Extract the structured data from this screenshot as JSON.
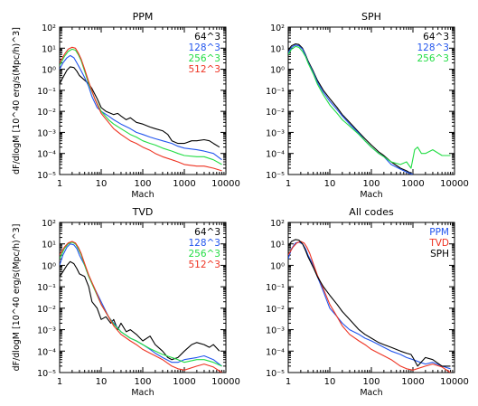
{
  "chart_data": [
    {
      "type": "line",
      "title": "PPM",
      "xlabel": "Mach",
      "ylabel": "dF/dlogM [10^40 erg/s(Mpc/h)^3]",
      "xscale": "log",
      "yscale": "log",
      "xlim": [
        1,
        10000
      ],
      "ylim": [
        1e-05,
        100
      ],
      "xticks": [
        "1",
        "10",
        "100",
        "1000",
        "10000"
      ],
      "legend_position": "top-right",
      "series": [
        {
          "name": "64^3",
          "color": "#000000",
          "x": [
            1,
            1.2,
            1.5,
            1.8,
            2.2,
            2.6,
            3,
            4,
            5,
            6,
            8,
            10,
            13,
            17,
            20,
            25,
            30,
            40,
            50,
            70,
            100,
            150,
            200,
            300,
            400,
            500,
            700,
            1000,
            1500,
            2000,
            3000,
            4000,
            5000,
            7000
          ],
          "y": [
            0.2,
            0.4,
            0.9,
            1.3,
            1.2,
            0.8,
            0.5,
            0.3,
            0.2,
            0.12,
            0.04,
            0.015,
            0.01,
            0.008,
            0.007,
            0.008,
            0.006,
            0.004,
            0.005,
            0.003,
            0.0025,
            0.0018,
            0.0015,
            0.0012,
            0.0008,
            0.0004,
            0.0003,
            0.0003,
            0.0004,
            0.0004,
            0.00045,
            0.0004,
            0.0003,
            0.0002
          ]
        },
        {
          "name": "128^3",
          "color": "#2255ee",
          "x": [
            1,
            1.2,
            1.5,
            1.8,
            2.2,
            2.6,
            3,
            4,
            5,
            6,
            8,
            10,
            15,
            20,
            30,
            50,
            70,
            100,
            150,
            200,
            300,
            500,
            700,
            1000,
            2000,
            3000,
            5000,
            8000
          ],
          "y": [
            1,
            2,
            3.5,
            4.5,
            3.5,
            2,
            1.2,
            0.4,
            0.15,
            0.05,
            0.015,
            0.01,
            0.006,
            0.004,
            0.0025,
            0.0015,
            0.001,
            0.0008,
            0.0006,
            0.0005,
            0.0004,
            0.0003,
            0.00022,
            0.00018,
            0.00015,
            0.00013,
            0.0001,
            5e-05
          ]
        },
        {
          "name": "256^3",
          "color": "#22dd44",
          "x": [
            1,
            1.3,
            1.6,
            2,
            2.4,
            2.8,
            3.3,
            4,
            5,
            7,
            10,
            15,
            20,
            30,
            50,
            70,
            100,
            150,
            200,
            300,
            500,
            700,
            1000,
            2000,
            3000,
            5000,
            8000
          ],
          "y": [
            1.5,
            4,
            7,
            9,
            8,
            5,
            2.5,
            0.8,
            0.2,
            0.04,
            0.01,
            0.004,
            0.0025,
            0.0015,
            0.0008,
            0.0006,
            0.0004,
            0.0003,
            0.00025,
            0.00018,
            0.00013,
            0.0001,
            8e-05,
            7e-05,
            7e-05,
            5e-05,
            3e-05
          ]
        },
        {
          "name": "512^3",
          "color": "#ee3322",
          "x": [
            1,
            1.3,
            1.6,
            2,
            2.4,
            2.8,
            3.3,
            4,
            5,
            7,
            10,
            15,
            20,
            30,
            50,
            70,
            100,
            150,
            200,
            300,
            500,
            700,
            1000,
            2000,
            3000,
            5000,
            8000
          ],
          "y": [
            2,
            5,
            9,
            11,
            10,
            6,
            3,
            1,
            0.25,
            0.04,
            0.008,
            0.003,
            0.0015,
            0.0008,
            0.0004,
            0.0003,
            0.0002,
            0.00014,
            0.0001,
            7e-05,
            5e-05,
            4e-05,
            3e-05,
            2.5e-05,
            2.5e-05,
            2e-05,
            1.5e-05
          ]
        }
      ]
    },
    {
      "type": "line",
      "title": "SPH",
      "xlabel": "Mach",
      "ylabel": "",
      "xscale": "log",
      "yscale": "log",
      "xlim": [
        1,
        10000
      ],
      "ylim": [
        1e-05,
        100
      ],
      "xticks": [
        "1",
        "10",
        "100",
        "1000",
        "10000"
      ],
      "legend_position": "top-right",
      "series": [
        {
          "name": "64^3",
          "color": "#000000",
          "x": [
            1,
            1.2,
            1.5,
            1.8,
            2.2,
            2.6,
            3,
            4,
            5,
            7,
            10,
            15,
            20,
            30,
            50,
            70,
            100,
            150,
            200,
            300,
            500,
            700,
            1000
          ],
          "y": [
            8,
            13,
            16,
            15,
            10,
            5,
            2.5,
            0.8,
            0.3,
            0.1,
            0.04,
            0.015,
            0.007,
            0.003,
            0.001,
            0.0005,
            0.00025,
            0.00012,
            8e-05,
            4e-05,
            2e-05,
            1.5e-05,
            1e-05
          ]
        },
        {
          "name": "128^3",
          "color": "#2255ee",
          "x": [
            1,
            1.2,
            1.5,
            1.8,
            2.2,
            2.6,
            3,
            4,
            5,
            7,
            10,
            15,
            20,
            30,
            50,
            70,
            100,
            150,
            200,
            300,
            500,
            700,
            1000
          ],
          "y": [
            6,
            11,
            14,
            13,
            9,
            4.5,
            2.2,
            0.7,
            0.25,
            0.08,
            0.03,
            0.012,
            0.006,
            0.0025,
            0.0009,
            0.0004,
            0.0002,
            0.0001,
            7e-05,
            3e-05,
            1.8e-05,
            1.3e-05,
            1e-05
          ]
        },
        {
          "name": "256^3",
          "color": "#22dd44",
          "x": [
            1,
            1.2,
            1.5,
            1.8,
            2.2,
            2.6,
            3,
            4,
            5,
            7,
            10,
            15,
            20,
            30,
            50,
            70,
            100,
            150,
            200,
            300,
            500,
            700,
            900,
            1100,
            1300,
            1600,
            2000,
            3000,
            5000,
            8000
          ],
          "y": [
            5,
            9,
            12,
            11,
            7,
            4,
            2,
            0.6,
            0.2,
            0.06,
            0.02,
            0.008,
            0.004,
            0.002,
            0.0008,
            0.0004,
            0.0002,
            0.0001,
            7e-05,
            4e-05,
            3e-05,
            4e-05,
            2e-05,
            0.00015,
            0.0002,
            0.0001,
            0.0001,
            0.00015,
            8e-05,
            8e-05
          ]
        }
      ]
    },
    {
      "type": "line",
      "title": "TVD",
      "xlabel": "Mach",
      "ylabel": "dF/dlogM [10^40 erg/s(Mpc/h)^3]",
      "xscale": "log",
      "yscale": "log",
      "xlim": [
        1,
        10000
      ],
      "ylim": [
        1e-05,
        100
      ],
      "xticks": [
        "1",
        "10",
        "100",
        "1000",
        "10000"
      ],
      "legend_position": "top-right",
      "series": [
        {
          "name": "64^3",
          "color": "#000000",
          "x": [
            1,
            1.2,
            1.5,
            1.8,
            2.2,
            2.6,
            3,
            4,
            5,
            6,
            8,
            10,
            13,
            17,
            20,
            25,
            30,
            40,
            50,
            70,
            100,
            150,
            200,
            300,
            400,
            500,
            700,
            1000,
            1500,
            2000,
            3000,
            4000,
            5000,
            7000
          ],
          "y": [
            0.3,
            0.5,
            1,
            1.5,
            1.2,
            0.7,
            0.4,
            0.3,
            0.1,
            0.02,
            0.01,
            0.003,
            0.004,
            0.002,
            0.003,
            0.001,
            0.002,
            0.0008,
            0.001,
            0.0006,
            0.0003,
            0.0005,
            0.0002,
            0.0001,
            5e-05,
            4e-05,
            5e-05,
            0.0001,
            0.0002,
            0.00025,
            0.0002,
            0.00015,
            0.0002,
            0.0001
          ]
        },
        {
          "name": "128^3",
          "color": "#2255ee",
          "x": [
            1,
            1.2,
            1.5,
            1.8,
            2.2,
            2.6,
            3,
            4,
            5,
            7,
            10,
            15,
            20,
            30,
            50,
            70,
            100,
            150,
            200,
            300,
            500,
            700,
            1000,
            2000,
            3000,
            5000,
            8000
          ],
          "y": [
            1,
            3,
            7,
            10,
            9,
            6,
            3,
            1,
            0.3,
            0.08,
            0.02,
            0.004,
            0.002,
            0.0008,
            0.0004,
            0.0003,
            0.0002,
            0.00012,
            8e-05,
            5e-05,
            3e-05,
            3e-05,
            4e-05,
            5e-05,
            6e-05,
            4e-05,
            2e-05
          ]
        },
        {
          "name": "256^3",
          "color": "#22dd44",
          "x": [
            1,
            1.3,
            1.6,
            2,
            2.4,
            2.8,
            3.3,
            4,
            5,
            7,
            10,
            15,
            20,
            30,
            50,
            70,
            100,
            150,
            200,
            300,
            500,
            700,
            1000,
            2000,
            3000,
            5000,
            8000
          ],
          "y": [
            2,
            6,
            10,
            12,
            10,
            6,
            3,
            1,
            0.3,
            0.07,
            0.015,
            0.004,
            0.0018,
            0.0008,
            0.0004,
            0.0003,
            0.0002,
            0.00013,
            0.0001,
            7e-05,
            5e-05,
            4e-05,
            3e-05,
            4e-05,
            4e-05,
            3e-05,
            2e-05
          ]
        },
        {
          "name": "512^3",
          "color": "#ee3322",
          "x": [
            1,
            1.3,
            1.6,
            2,
            2.4,
            2.8,
            3.3,
            4,
            5,
            7,
            10,
            15,
            20,
            30,
            50,
            70,
            100,
            150,
            200,
            300,
            500,
            700,
            1000,
            2000,
            3000,
            5000,
            8000
          ],
          "y": [
            3,
            7,
            11,
            13,
            11,
            7,
            3.5,
            1.2,
            0.35,
            0.08,
            0.015,
            0.004,
            0.0015,
            0.0006,
            0.0003,
            0.0002,
            0.00012,
            8e-05,
            6e-05,
            4e-05,
            2e-05,
            1.5e-05,
            1.3e-05,
            2e-05,
            2.5e-05,
            1.8e-05,
            1e-05
          ]
        }
      ]
    },
    {
      "type": "line",
      "title": "All codes",
      "xlabel": "Mach",
      "ylabel": "",
      "xscale": "log",
      "yscale": "log",
      "xlim": [
        1,
        10000
      ],
      "ylim": [
        1e-05,
        100
      ],
      "xticks": [
        "1",
        "10",
        "100",
        "1000",
        "10000"
      ],
      "legend_position": "top-right",
      "series": [
        {
          "name": "PPM",
          "color": "#2255ee",
          "x": [
            1,
            1.2,
            1.5,
            1.8,
            2.2,
            2.6,
            3,
            4,
            5,
            7,
            10,
            15,
            20,
            30,
            50,
            70,
            100,
            150,
            200,
            300,
            500,
            700,
            1000,
            1500,
            2000,
            3000,
            5000,
            8000
          ],
          "y": [
            2,
            6,
            11,
            12,
            10,
            6,
            3,
            1,
            0.3,
            0.06,
            0.01,
            0.004,
            0.002,
            0.001,
            0.0006,
            0.0004,
            0.0003,
            0.0002,
            0.00015,
            0.0001,
            7e-05,
            5e-05,
            4e-05,
            3e-05,
            2.5e-05,
            3e-05,
            2e-05,
            1.5e-05
          ]
        },
        {
          "name": "TVD",
          "color": "#ee3322",
          "x": [
            1,
            1.3,
            1.6,
            2,
            2.4,
            2.8,
            3.3,
            4,
            5,
            7,
            10,
            15,
            20,
            30,
            50,
            70,
            100,
            150,
            200,
            300,
            500,
            700,
            1000,
            2000,
            3000,
            5000,
            8000
          ],
          "y": [
            3,
            7,
            11,
            13,
            11,
            7,
            3.5,
            1.2,
            0.35,
            0.08,
            0.015,
            0.004,
            0.0015,
            0.0006,
            0.0003,
            0.0002,
            0.00012,
            8e-05,
            6e-05,
            4e-05,
            2e-05,
            1.5e-05,
            1.3e-05,
            2e-05,
            2.5e-05,
            1.8e-05,
            1e-05
          ]
        },
        {
          "name": "SPH",
          "color": "#000000",
          "x": [
            1,
            1.2,
            1.5,
            1.8,
            2.2,
            2.6,
            3,
            4,
            5,
            7,
            10,
            15,
            20,
            30,
            50,
            70,
            100,
            150,
            200,
            300,
            500,
            700,
            900,
            1000,
            1300,
            2000,
            3000,
            5000,
            8000
          ],
          "y": [
            8,
            13,
            16,
            15,
            10,
            5,
            2.5,
            0.8,
            0.3,
            0.1,
            0.04,
            0.015,
            0.007,
            0.003,
            0.001,
            0.0006,
            0.0004,
            0.00025,
            0.0002,
            0.00015,
            0.0001,
            8e-05,
            7e-05,
            5e-05,
            2e-05,
            5e-05,
            4e-05,
            2e-05,
            2e-05
          ]
        }
      ]
    }
  ]
}
